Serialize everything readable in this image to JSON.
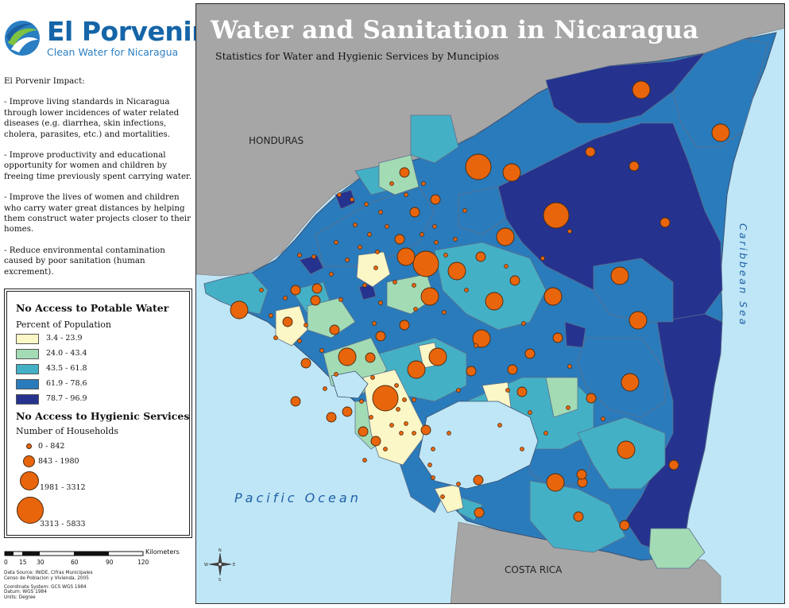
{
  "brand": {
    "name": "El Porvenir",
    "tagline": "Clean Water for Nicaragua"
  },
  "impact": {
    "heading": "El Porvenir Impact:",
    "points": [
      "- Improve living standards in Nicaragua through lower incidences of water related diseases (e.g. diarrhea, skin infections, cholera, parasites, etc.) and mortalities.",
      "- Improve productivity and educational opportunity for women and children by freeing time previously spent carrying water.",
      "- Improve the lives of women and children who carry water great distances by helping them construct water projects closer to their homes.",
      "- Reduce environmental contamination caused by poor sanitation (human excrement)."
    ]
  },
  "legend": {
    "water_title": "No Access to Potable Water",
    "water_subtitle": "Percent of Population",
    "water_classes": [
      {
        "label": "3.4 - 23.9",
        "color": "#fbf7c6"
      },
      {
        "label": "24.0 - 43.4",
        "color": "#a3dbb5"
      },
      {
        "label": "43.5 - 61.8",
        "color": "#44b0c6"
      },
      {
        "label": "61.9 - 78.6",
        "color": "#2a7bbb"
      },
      {
        "label": "78.7 - 96.9",
        "color": "#25338f"
      }
    ],
    "hygiene_title": "No Access to Hygienic Services",
    "hygiene_subtitle": "Number of Households",
    "hygiene_classes": [
      {
        "label": "0 - 842"
      },
      {
        "label": "843 - 1980"
      },
      {
        "label": "1981 - 3312"
      },
      {
        "label": "3313 - 5833"
      }
    ],
    "symbol_color": "#e8650c"
  },
  "scalebar": {
    "unit": "Kilometers",
    "ticks": [
      "0",
      "15",
      "30",
      "60",
      "90",
      "120"
    ]
  },
  "source": {
    "lines": [
      "Data Source: INIDE, Cifras Municipales",
      "Censo de Poblacion y Vivienda, 2005",
      "Coordinate System: GCS WGS 1984",
      "Datum: WGS 1984",
      "Units: Degree"
    ]
  },
  "map": {
    "title": "Water and Sanitation in Nicaragua",
    "subtitle": "Statistics for Water and Hygienic Services by Muncipios",
    "labels": {
      "honduras": "HONDURAS",
      "costa_rica": "COSTA RICA",
      "pacific": "Pacific Ocean",
      "caribbean": "Caribbean Sea"
    },
    "colors": {
      "sea": "#bfe6f6",
      "land": "#a6a6a6",
      "boundary": "#5d6f8a"
    },
    "compass": [
      "N",
      "S",
      "E",
      "W"
    ]
  }
}
